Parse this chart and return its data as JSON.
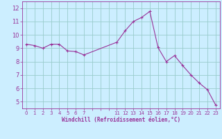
{
  "x": [
    0,
    1,
    2,
    3,
    4,
    5,
    6,
    7,
    11,
    12,
    13,
    14,
    15,
    16,
    17,
    18,
    19,
    20,
    21,
    22,
    23
  ],
  "y": [
    9.3,
    9.2,
    9.0,
    9.3,
    9.3,
    8.8,
    8.75,
    8.5,
    9.45,
    10.3,
    11.0,
    11.3,
    11.75,
    9.05,
    8.0,
    8.45,
    7.7,
    7.0,
    6.4,
    5.9,
    4.75
  ],
  "line_color": "#993399",
  "marker": "+",
  "bg_color": "#cceeff",
  "grid_color": "#99cccc",
  "xlabel": "Windchill (Refroidissement éolien,°C)",
  "xlabel_color": "#993399",
  "tick_color": "#993399",
  "ylim": [
    4.5,
    12.5
  ],
  "yticks": [
    5,
    6,
    7,
    8,
    9,
    10,
    11,
    12
  ],
  "title_color": "#993399"
}
